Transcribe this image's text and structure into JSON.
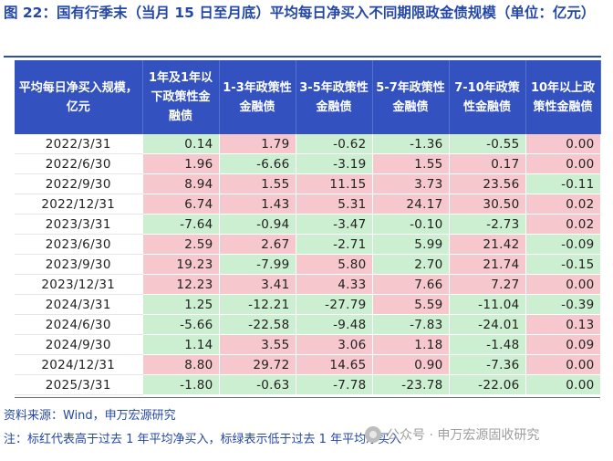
{
  "title": "图 22：国有行季末（当月 15 日至月底）平均每日净买入不同期限政金债规模（单位：亿元）",
  "table": {
    "headers": [
      "平均每日净买入规模，\n亿元",
      "1年及1年以\n下政策性金\n融债",
      "1-3年政策性\n金融债",
      "3-5年政策性\n金融债",
      "5-7年政策性\n金融债",
      "7-10年政策\n性金融债",
      "10年以上政\n策性金融债"
    ],
    "rows": [
      {
        "date": "2022/3/31",
        "values": [
          "0.14",
          "1.79",
          "-0.62",
          "-1.36",
          "-0.55",
          "0.00"
        ],
        "colors": [
          "green",
          "red",
          "green",
          "green",
          "green",
          "red"
        ]
      },
      {
        "date": "2022/6/30",
        "values": [
          "1.96",
          "-6.66",
          "-3.19",
          "1.55",
          "0.17",
          "0.00"
        ],
        "colors": [
          "red",
          "green",
          "green",
          "red",
          "red",
          "red"
        ]
      },
      {
        "date": "2022/9/30",
        "values": [
          "8.94",
          "1.55",
          "11.15",
          "3.73",
          "23.56",
          "-0.11"
        ],
        "colors": [
          "red",
          "red",
          "red",
          "red",
          "red",
          "green"
        ]
      },
      {
        "date": "2022/12/31",
        "values": [
          "6.74",
          "1.43",
          "5.31",
          "24.17",
          "30.50",
          "0.02"
        ],
        "colors": [
          "red",
          "red",
          "red",
          "red",
          "red",
          "red"
        ]
      },
      {
        "date": "2023/3/31",
        "values": [
          "-7.64",
          "-0.94",
          "-3.47",
          "-0.10",
          "-2.73",
          "0.02"
        ],
        "colors": [
          "green",
          "green",
          "green",
          "green",
          "green",
          "red"
        ]
      },
      {
        "date": "2023/6/30",
        "values": [
          "2.59",
          "2.67",
          "-2.71",
          "5.99",
          "21.42",
          "-0.09"
        ],
        "colors": [
          "red",
          "red",
          "green",
          "green",
          "red",
          "green"
        ]
      },
      {
        "date": "2023/9/30",
        "values": [
          "19.23",
          "-7.99",
          "5.80",
          "2.70",
          "21.74",
          "-0.15"
        ],
        "colors": [
          "red",
          "green",
          "red",
          "green",
          "red",
          "green"
        ]
      },
      {
        "date": "2023/12/31",
        "values": [
          "12.23",
          "3.41",
          "4.33",
          "7.66",
          "7.27",
          "0.00"
        ],
        "colors": [
          "red",
          "red",
          "red",
          "red",
          "red",
          "red"
        ]
      },
      {
        "date": "2024/3/31",
        "values": [
          "1.25",
          "-12.21",
          "-27.79",
          "5.59",
          "-11.04",
          "-0.39"
        ],
        "colors": [
          "green",
          "green",
          "green",
          "red",
          "green",
          "green"
        ]
      },
      {
        "date": "2024/6/30",
        "values": [
          "-5.66",
          "-22.58",
          "-9.48",
          "-7.83",
          "-24.01",
          "0.13"
        ],
        "colors": [
          "green",
          "green",
          "green",
          "green",
          "green",
          "red"
        ]
      },
      {
        "date": "2024/9/30",
        "values": [
          "1.14",
          "3.55",
          "3.06",
          "1.18",
          "-1.48",
          "0.09"
        ],
        "colors": [
          "green",
          "red",
          "red",
          "red",
          "green",
          "red"
        ]
      },
      {
        "date": "2024/12/31",
        "values": [
          "8.80",
          "29.72",
          "14.65",
          "0.90",
          "-7.36",
          "0.00"
        ],
        "colors": [
          "red",
          "red",
          "red",
          "red",
          "green",
          "red"
        ]
      },
      {
        "date": "2025/3/31",
        "values": [
          "-1.80",
          "-0.63",
          "-7.78",
          "-23.78",
          "-22.06",
          "0.00"
        ],
        "colors": [
          "green",
          "green",
          "green",
          "green",
          "green",
          "green"
        ]
      }
    ]
  },
  "source": "资料来源：Wind，申万宏源研究",
  "note": "注：标红代表高于过去 1 年平均净买入，标绿表示低于过去 1 年平均净买入",
  "watermark": {
    "text": "公众号 · 申万宏源固收研究",
    "icon": "wechat-icon"
  },
  "colors": {
    "header_bg": "#3352c0",
    "above_avg": "#f6c7cd",
    "below_avg": "#cbefd0",
    "title_text": "#2548a6"
  }
}
